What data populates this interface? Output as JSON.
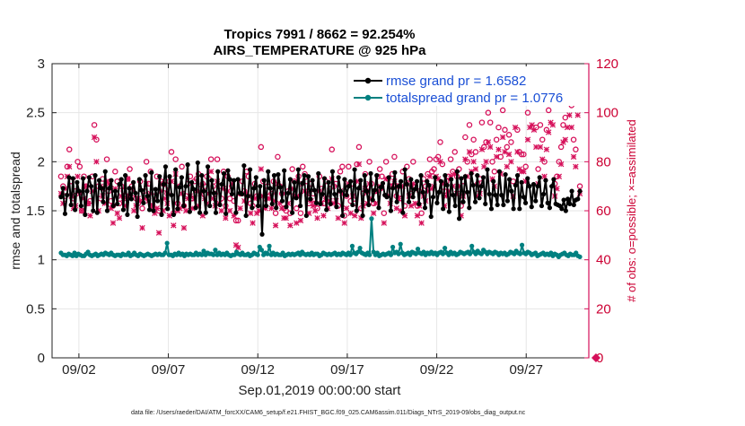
{
  "chart_data": {
    "type": "line",
    "title": [
      "Tropics 7991 / 8662 = 92.254%",
      "AIRS_TEMPERATURE @ 925 hPa"
    ],
    "xlabel": "Sep.01,2019 00:00:00 start",
    "ylabel_left": "rmse and totalspread",
    "ylabel_right": "# of obs: o=possible; ×=assimilated",
    "footnote": "data file: /Users/raeder/DAI/ATM_forcXX/CAM6_setup/f.e21.FHIST_BGC.f09_025.CAM6assim.011/Diags_NTrS_2019-09/obs_diag_output.nc",
    "xlim": [
      0.5,
      30.5
    ],
    "ylim_left": [
      0,
      3
    ],
    "ylim_right": [
      0,
      120
    ],
    "x_ticks": [
      {
        "x": 2,
        "label": "09/02"
      },
      {
        "x": 7,
        "label": "09/07"
      },
      {
        "x": 12,
        "label": "09/12"
      },
      {
        "x": 17,
        "label": "09/17"
      },
      {
        "x": 22,
        "label": "09/22"
      },
      {
        "x": 27,
        "label": "09/27"
      }
    ],
    "y_ticks_left": [
      "0",
      "0.5",
      "1",
      "1.5",
      "2",
      "2.5",
      "3"
    ],
    "y_ticks_right": [
      "0",
      "20",
      "40",
      "60",
      "80",
      "100",
      "120"
    ],
    "colors": {
      "rmse": "#000000",
      "spread": "#008080",
      "obs": "#d6105a",
      "legend_text": "#1a4fd6",
      "grid": "#e6e6e6"
    },
    "series": [
      {
        "name": "rmse grand pr = 1.6582",
        "axis": "left",
        "marker": "dot",
        "values": [
          1.64,
          1.73,
          1.47,
          1.66,
          1.84,
          1.56,
          1.83,
          1.51,
          1.79,
          1.7,
          1.55,
          1.83,
          1.46,
          1.7,
          1.84,
          1.75,
          1.5,
          1.86,
          1.48,
          1.81,
          1.73,
          1.59,
          1.9,
          1.5,
          1.73,
          1.81,
          1.55,
          1.7,
          1.57,
          1.77,
          1.82,
          1.51,
          1.86,
          1.46,
          1.73,
          1.62,
          1.79,
          1.68,
          1.44,
          1.82,
          1.71,
          1.58,
          1.86,
          1.65,
          1.51,
          1.89,
          1.5,
          1.72,
          1.6,
          1.85,
          1.46,
          1.77,
          1.95,
          1.52,
          1.85,
          1.66,
          1.46,
          1.92,
          1.52,
          1.74,
          1.84,
          1.55,
          1.75,
          1.97,
          1.49,
          1.79,
          1.72,
          1.53,
          1.99,
          1.48,
          1.86,
          1.7,
          1.48,
          1.95,
          1.55,
          1.81,
          1.68,
          1.48,
          1.9,
          1.56,
          1.77,
          1.88,
          1.47,
          1.91,
          1.82,
          1.67,
          1.81,
          1.48,
          1.82,
          1.68,
          1.67,
          1.96,
          1.45,
          1.65,
          1.92,
          1.53,
          1.73,
          1.84,
          1.55,
          1.75,
          1.26,
          1.81,
          1.55,
          1.9,
          1.73,
          1.57,
          1.86,
          1.53,
          1.87,
          1.74,
          1.6,
          1.91,
          1.54,
          1.68,
          1.82,
          1.48,
          1.79,
          1.63,
          1.92,
          1.55,
          1.78,
          1.86,
          1.45,
          1.85,
          1.62,
          1.81,
          1.71,
          1.58,
          1.88,
          1.57,
          1.67,
          1.83,
          1.51,
          1.79,
          1.57,
          1.9,
          1.67,
          1.54,
          1.84,
          1.7,
          1.45,
          1.82,
          1.66,
          1.75,
          1.8,
          1.56,
          1.92,
          1.5,
          1.73,
          1.81,
          1.45,
          1.86,
          1.7,
          1.56,
          1.88,
          1.61,
          1.71,
          1.86,
          1.53,
          1.74,
          1.78,
          1.66,
          1.64,
          1.84,
          1.5,
          1.73,
          1.89,
          1.59,
          1.75,
          1.8,
          1.48,
          1.92,
          1.77,
          1.59,
          1.82,
          1.64,
          1.72,
          1.8,
          1.57,
          1.86,
          1.69,
          1.53,
          1.8,
          1.76,
          1.44,
          1.64,
          1.84,
          1.58,
          1.69,
          1.8,
          1.52,
          1.86,
          1.76,
          1.49,
          1.82,
          1.66,
          1.55,
          1.9,
          1.42,
          1.83,
          1.59,
          1.85,
          1.69,
          1.53,
          1.88,
          1.76,
          1.59,
          1.86,
          1.63,
          1.75,
          1.84,
          1.57,
          1.92,
          1.67,
          1.52,
          1.8,
          1.66,
          1.56,
          1.9,
          1.66,
          1.56,
          1.87,
          1.6,
          1.82,
          1.7,
          1.52,
          1.76,
          1.86,
          1.52,
          1.79,
          1.64,
          1.58,
          1.83,
          1.75,
          1.54,
          1.77,
          1.6,
          1.75,
          1.84,
          1.55,
          1.67,
          1.81,
          1.58,
          1.53,
          1.75,
          1.82,
          1.57,
          1.56,
          1.55,
          1.52,
          1.61,
          1.5,
          1.62,
          1.57,
          1.7,
          1.56,
          1.61,
          1.62,
          1.7
        ]
      },
      {
        "name": "totalspread grand pr = 1.0776",
        "axis": "left",
        "marker": "dot",
        "values": [
          1.07,
          1.05,
          1.05,
          1.04,
          1.06,
          1.05,
          1.04,
          1.07,
          1.04,
          1.06,
          1.05,
          1.04,
          1.04,
          1.06,
          1.08,
          1.05,
          1.04,
          1.05,
          1.06,
          1.04,
          1.05,
          1.06,
          1.05,
          1.07,
          1.06,
          1.05,
          1.07,
          1.05,
          1.04,
          1.05,
          1.05,
          1.04,
          1.06,
          1.05,
          1.05,
          1.07,
          1.04,
          1.05,
          1.07,
          1.05,
          1.04,
          1.06,
          1.05,
          1.04,
          1.05,
          1.06,
          1.05,
          1.04,
          1.05,
          1.06,
          1.05,
          1.06,
          1.05,
          1.05,
          1.07,
          1.17,
          1.05,
          1.05,
          1.04,
          1.06,
          1.05,
          1.07,
          1.05,
          1.06,
          1.04,
          1.06,
          1.05,
          1.06,
          1.05,
          1.05,
          1.07,
          1.05,
          1.06,
          1.05,
          1.09,
          1.05,
          1.07,
          1.06,
          1.06,
          1.05,
          1.1,
          1.05,
          1.07,
          1.05,
          1.06,
          1.05,
          1.07,
          1.05,
          1.04,
          1.05,
          1.05,
          1.08,
          1.06,
          1.05,
          1.07,
          1.05,
          1.05,
          1.06,
          1.04,
          1.05,
          1.07,
          1.06,
          1.05,
          1.13,
          1.1,
          1.05,
          1.07,
          1.06,
          1.14,
          1.05,
          1.07,
          1.05,
          1.06,
          1.05,
          1.05,
          1.07,
          1.04,
          1.05,
          1.06,
          1.05,
          1.06,
          1.05,
          1.06,
          1.07,
          1.05,
          1.08,
          1.06,
          1.05,
          1.06,
          1.05,
          1.07,
          1.05,
          1.06,
          1.06,
          1.04,
          1.05,
          1.07,
          1.06,
          1.05,
          1.06,
          1.05,
          1.06,
          1.07,
          1.05,
          1.06,
          1.05,
          1.07,
          1.06,
          1.05,
          1.07,
          1.05,
          1.14,
          1.07,
          1.06,
          1.08,
          1.12,
          1.07,
          1.06,
          1.05,
          1.07,
          1.05,
          1.42,
          1.08,
          1.05,
          1.07,
          1.04,
          1.05,
          1.06,
          1.05,
          1.06,
          1.07,
          1.05,
          1.13,
          1.07,
          1.08,
          1.06,
          1.16,
          1.07,
          1.05,
          1.06,
          1.07,
          1.05,
          1.08,
          1.07,
          1.06,
          1.11,
          1.07,
          1.06,
          1.08,
          1.05,
          1.07,
          1.06,
          1.08,
          1.06,
          1.07,
          1.05,
          1.07,
          1.08,
          1.06,
          1.12,
          1.07,
          1.05,
          1.08,
          1.06,
          1.07,
          1.05,
          1.06,
          1.08,
          1.07,
          1.06,
          1.07,
          1.08,
          1.06,
          1.14,
          1.08,
          1.06,
          1.09,
          1.07,
          1.06,
          1.1,
          1.08,
          1.06,
          1.08,
          1.07,
          1.06,
          1.08,
          1.07,
          1.05,
          1.07,
          1.06,
          1.07,
          1.05,
          1.06,
          1.08,
          1.07,
          1.06,
          1.09,
          1.07,
          1.06,
          1.15,
          1.07,
          1.06,
          1.08,
          1.07,
          1.05,
          1.06,
          1.07,
          1.04,
          1.05,
          1.06,
          1.07,
          1.05,
          1.06,
          1.05,
          1.07,
          1.04,
          1.06,
          1.05,
          1.03,
          1.05,
          1.06,
          1.07,
          1.05,
          1.04,
          1.06,
          1.05,
          1.05,
          1.07,
          1.04,
          1.03
        ]
      },
      {
        "name": "# of obs possible",
        "axis": "right",
        "marker": "circle",
        "values": [
          74,
          70,
          66,
          78,
          85,
          72,
          65,
          68,
          80,
          78,
          60,
          74,
          70,
          63,
          64,
          74,
          95,
          89,
          70,
          65,
          73,
          69,
          81,
          68,
          64,
          62,
          76,
          72,
          63,
          70,
          68,
          66,
          73,
          77,
          70,
          67,
          65,
          63,
          72,
          61,
          68,
          80,
          71,
          76,
          62,
          66,
          74,
          60,
          72,
          71,
          69,
          67,
          72,
          84,
          59,
          81,
          63,
          70,
          78,
          62,
          66,
          71,
          74,
          65,
          72,
          73,
          75,
          69,
          71,
          70,
          74,
          73,
          81,
          70,
          67,
          81,
          70,
          65,
          76,
          62,
          74,
          65,
          70,
          64,
          56,
          56,
          67,
          72,
          68,
          76,
          74,
          63,
          62,
          71,
          66,
          66,
          86,
          72,
          65,
          70,
          66,
          67,
          72,
          59,
          82,
          70,
          67,
          61,
          60,
          68,
          59,
          77,
          72,
          61,
          74,
          59,
          78,
          75,
          72,
          63,
          71,
          67,
          63,
          61,
          74,
          69,
          63,
          72,
          65,
          69,
          85,
          70,
          71,
          62,
          76,
          78,
          58,
          66,
          78,
          64,
          71,
          63,
          79,
          86,
          61,
          67,
          75,
          68,
          80,
          71,
          63,
          68,
          74,
          77,
          74,
          59,
          80,
          73,
          70,
          75,
          82,
          66,
          70,
          65,
          76,
          62,
          78,
          73,
          67,
          80,
          70,
          62,
          68,
          59,
          73,
          70,
          75,
          81,
          76,
          77,
          81,
          82,
          88,
          79,
          68,
          72,
          74,
          81,
          76,
          84,
          74,
          77,
          62,
          72,
          90,
          80,
          95,
          83,
          89,
          84,
          71,
          73,
          96,
          86,
          88,
          100,
          96,
          80,
          76,
          89,
          94,
          82,
          101,
          93,
          86,
          91,
          88,
          72,
          106,
          93,
          84,
          83,
          83,
          78,
          100,
          106,
          106,
          105,
          94,
          77,
          95,
          89,
          80,
          93,
          101,
          106,
          106,
          71,
          74,
          80,
          86,
          95,
          98,
          104,
          110,
          103,
          89,
          85,
          106,
          70
        ]
      },
      {
        "name": "# of obs assimilated",
        "axis": "right",
        "marker": "cross",
        "values": [
          67,
          63,
          69,
          74,
          78,
          66,
          61,
          62,
          74,
          67,
          60,
          65,
          70,
          63,
          58,
          68,
          90,
          80,
          60,
          70,
          66,
          63,
          72,
          71,
          61,
          55,
          69,
          59,
          57,
          66,
          65,
          62,
          73,
          66,
          69,
          60,
          62,
          65,
          64,
          53,
          65,
          71,
          64,
          67,
          62,
          59,
          61,
          51,
          68,
          60,
          65,
          63,
          58,
          72,
          54,
          75,
          60,
          61,
          67,
          53,
          60,
          65,
          66,
          61,
          65,
          68,
          62,
          67,
          58,
          65,
          63,
          67,
          76,
          65,
          62,
          72,
          63,
          60,
          69,
          57,
          68,
          60,
          71,
          58,
          46,
          45,
          61,
          67,
          64,
          67,
          66,
          59,
          55,
          65,
          59,
          60,
          77,
          66,
          61,
          65,
          65,
          61,
          64,
          54,
          71,
          63,
          61,
          57,
          57,
          63,
          54,
          69,
          66,
          55,
          66,
          56,
          71,
          68,
          67,
          59,
          64,
          62,
          60,
          57,
          68,
          63,
          58,
          65,
          61,
          64,
          73,
          63,
          64,
          57,
          68,
          67,
          55,
          61,
          71,
          59,
          66,
          58,
          72,
          79,
          57,
          62,
          69,
          63,
          71,
          65,
          59,
          63,
          68,
          70,
          69,
          55,
          73,
          66,
          63,
          70,
          72,
          61,
          65,
          60,
          70,
          58,
          71,
          66,
          62,
          71,
          63,
          58,
          62,
          55,
          66,
          64,
          68,
          74,
          69,
          70,
          74,
          73,
          80,
          71,
          62,
          66,
          68,
          74,
          70,
          75,
          67,
          70,
          58,
          66,
          81,
          74,
          84,
          76,
          80,
          77,
          66,
          67,
          85,
          78,
          80,
          88,
          86,
          73,
          70,
          82,
          85,
          75,
          90,
          84,
          78,
          83,
          80,
          66,
          94,
          84,
          77,
          76,
          76,
          72,
          89,
          94,
          95,
          93,
          86,
          71,
          86,
          81,
          74,
          85,
          92,
          96,
          95,
          66,
          69,
          74,
          79,
          88,
          89,
          94,
          99,
          94,
          82,
          78,
          99,
          67
        ]
      }
    ],
    "legend": [
      {
        "label": "rmse grand pr = 1.6582",
        "series": 0
      },
      {
        "label": "totalspread grand pr = 1.0776",
        "series": 1
      }
    ],
    "annotations": [
      {
        "type": "obs-count-spike",
        "series": 2,
        "note": "outlier x-position estimated at 09/17"
      },
      {
        "type": "diamond-marker",
        "axis": "right",
        "x": 30.9,
        "y": 0
      }
    ]
  }
}
